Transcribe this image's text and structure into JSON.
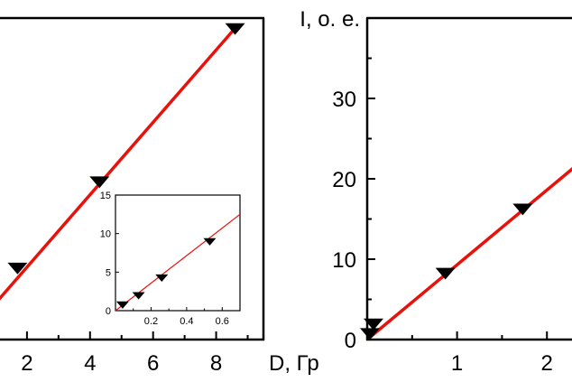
{
  "chart_data": [
    {
      "type": "line",
      "xlabel": "D, Гр",
      "ylabel": "",
      "xlim": [
        0,
        9.5
      ],
      "ylim": [
        0,
        38
      ],
      "xticks": [
        2,
        4,
        6,
        8
      ],
      "xtick_labels": [
        "2",
        "4",
        "6",
        "8"
      ],
      "points": {
        "x": [
          1.7,
          4.3,
          8.6
        ],
        "y": [
          8.5,
          18.7,
          36.8
        ]
      },
      "fit": {
        "x": [
          0,
          8.6
        ],
        "y": [
          0,
          36.8
        ]
      },
      "colors": {
        "fit": "#e8120c",
        "marker": "#000000"
      },
      "inset": {
        "type": "line",
        "xlim": [
          0,
          0.7
        ],
        "ylim": [
          0,
          15
        ],
        "xticks": [
          0.2,
          0.4,
          0.6
        ],
        "xtick_labels": [
          "0.2",
          "0.4",
          "0.6"
        ],
        "yticks": [
          0,
          5,
          10,
          15
        ],
        "ytick_labels": [
          "0",
          "5",
          "10",
          "15"
        ],
        "points": {
          "x": [
            0.04,
            0.13,
            0.26,
            0.53
          ],
          "y": [
            0.8,
            2.0,
            4.3,
            9.0
          ]
        },
        "fit": {
          "x": [
            0,
            0.7
          ],
          "y": [
            0,
            12.5
          ]
        }
      }
    },
    {
      "type": "line",
      "ylabel": "I, о. е.",
      "xlabel": "",
      "xlim": [
        0,
        2.58
      ],
      "ylim": [
        0,
        40
      ],
      "xticks": [
        1,
        2
      ],
      "xtick_labels": [
        "1",
        "2"
      ],
      "yticks": [
        0,
        10,
        20,
        30
      ],
      "ytick_labels": [
        "0",
        "10",
        "20",
        "30"
      ],
      "points": {
        "x": [
          0.03,
          0.07,
          0.87,
          1.73
        ],
        "y": [
          0.8,
          2.0,
          8.3,
          16.3
        ]
      },
      "fit": {
        "x": [
          0,
          2.58
        ],
        "y": [
          0,
          24.0
        ]
      },
      "colors": {
        "fit": "#e8120c",
        "marker": "#000000"
      }
    }
  ]
}
